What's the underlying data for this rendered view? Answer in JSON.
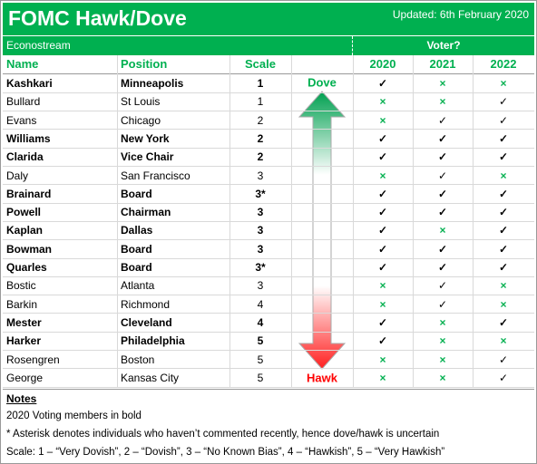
{
  "header": {
    "title": "FOMC Hawk/Dove",
    "updated": "Updated: 6th February 2020",
    "source": "Econostream",
    "voter_heading": "Voter?"
  },
  "table": {
    "columns": [
      "Name",
      "Position",
      "Scale",
      "2020",
      "2021",
      "2022"
    ],
    "rows": [
      [
        "Kashkari",
        "Minneapolis",
        "1",
        "✓",
        "×",
        "×"
      ],
      [
        "Bullard",
        "St Louis",
        "1",
        "×",
        "×",
        "✓"
      ],
      [
        "Evans",
        "Chicago",
        "2",
        "×",
        "✓",
        "✓"
      ],
      [
        "Williams",
        "New York",
        "2",
        "✓",
        "✓",
        "✓"
      ],
      [
        "Clarida",
        "Vice Chair",
        "2",
        "✓",
        "✓",
        "✓"
      ],
      [
        "Daly",
        "San Francisco",
        "3",
        "×",
        "✓",
        "×"
      ],
      [
        "Brainard",
        "Board",
        "3*",
        "✓",
        "✓",
        "✓"
      ],
      [
        "Powell",
        "Chairman",
        "3",
        "✓",
        "✓",
        "✓"
      ],
      [
        "Kaplan",
        "Dallas",
        "3",
        "✓",
        "×",
        "✓"
      ],
      [
        "Bowman",
        "Board",
        "3",
        "✓",
        "✓",
        "✓"
      ],
      [
        "Quarles",
        "Board",
        "3*",
        "✓",
        "✓",
        "✓"
      ],
      [
        "Bostic",
        "Atlanta",
        "3",
        "×",
        "✓",
        "×"
      ],
      [
        "Barkin",
        "Richmond",
        "4",
        "×",
        "✓",
        "×"
      ],
      [
        "Mester",
        "Cleveland",
        "4",
        "✓",
        "×",
        "✓"
      ],
      [
        "Harker",
        "Philadelphia",
        "5",
        "✓",
        "×",
        "×"
      ],
      [
        "Rosengren",
        "Boston",
        "5",
        "×",
        "×",
        "✓"
      ],
      [
        "George",
        "Kansas City",
        "5",
        "×",
        "×",
        "✓"
      ]
    ]
  },
  "arrow": {
    "top": "Dove",
    "bottom": "Hawk"
  },
  "notes": {
    "heading": "Notes",
    "lines": [
      "2020 Voting members in bold",
      "* Asterisk denotes individuals who haven’t commented recently, hence dove/hawk is uncertain",
      "Scale: 1 – “Very Dovish”, 2 – “Dovish”, 3 – “No Known Bias”, 4 – “Hawkish”, 5 – “Very Hawkish”"
    ]
  }
}
